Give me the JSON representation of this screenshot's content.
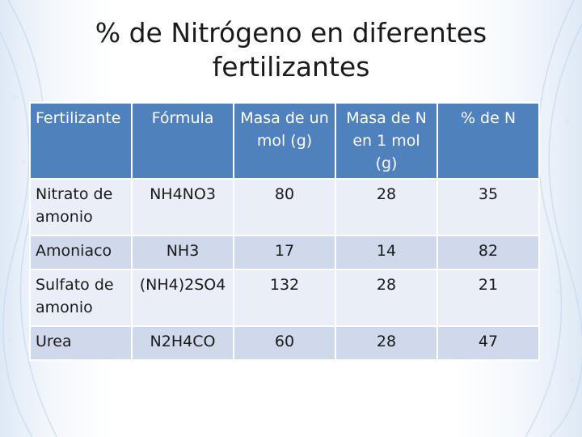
{
  "slide": {
    "title": "% de Nitrógeno en diferentes fertilizantes"
  },
  "table": {
    "headers": [
      "Fertilizante",
      "Fórmula",
      "Masa de un mol (g)",
      "Masa de N en 1 mol (g)",
      "% de N"
    ],
    "rows": [
      [
        "Nitrato de amonio",
        "NH4NO3",
        "80",
        "28",
        "35"
      ],
      [
        "Amoniaco",
        "NH3",
        "17",
        "14",
        "82"
      ],
      [
        "Sulfato de amonio",
        "(NH4)2SO4",
        "132",
        "28",
        "21"
      ],
      [
        "Urea",
        "N2H4CO",
        "60",
        "28",
        "47"
      ]
    ]
  },
  "colors": {
    "header_bg": "#4f81bd",
    "row_light": "#e9eef7",
    "row_dark": "#d0d9eb",
    "slide_accent": "#c9daf0"
  }
}
